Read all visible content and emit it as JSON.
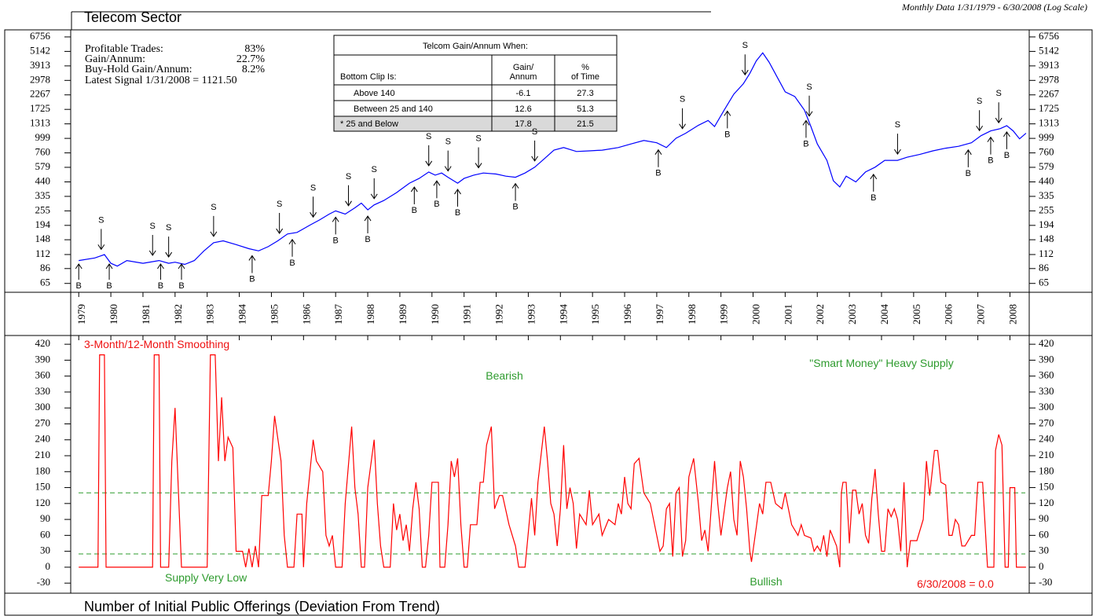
{
  "stats": [
    {
      "label": "Profitable Trades:",
      "value": "83%"
    },
    {
      "label": "Gain/Annum:",
      "value": "22.7%"
    },
    {
      "label": "Buy-Hold Gain/Annum:",
      "value": "8.2%"
    },
    {
      "label": "Latest Signal 1/31/2008 = 1121.50",
      "value": null
    }
  ],
  "table": {
    "title": "Telcom Gain/Annum When:",
    "headers": [
      [
        "Bottom Clip Is:"
      ],
      [
        "Gain/",
        "Annum"
      ],
      [
        "%",
        "of Time"
      ]
    ],
    "rows": [
      [
        "Above 140",
        -6.1,
        27.3
      ],
      [
        "Between 25 and 140",
        12.6,
        51.3
      ],
      [
        "* 25 and Below",
        17.8,
        21.5
      ]
    ]
  },
  "chart_data": [
    {
      "type": "line",
      "title": "Telecom Sector",
      "subtitle": "Monthly Data 1/31/1979 - 6/30/2008 (Log Scale)",
      "log_scale": true,
      "color": "#0000ff",
      "xlim": [
        1978.75,
        2008.6
      ],
      "xticks": [
        1979,
        1980,
        1981,
        1982,
        1983,
        1984,
        1985,
        1986,
        1987,
        1988,
        1989,
        1990,
        1991,
        1992,
        1993,
        1994,
        1995,
        1996,
        1997,
        1998,
        1999,
        2000,
        2001,
        2002,
        2003,
        2004,
        2005,
        2006,
        2007,
        2008
      ],
      "ylim": [
        55,
        7715
      ],
      "yticks": [
        65,
        86,
        112,
        148,
        194,
        255,
        335,
        440,
        579,
        760,
        999,
        1313,
        1725,
        2267,
        2978,
        3913,
        5142,
        6756
      ],
      "x": [
        1979.0,
        1979.5,
        1979.8,
        1980.0,
        1980.2,
        1980.5,
        1981.0,
        1981.5,
        1981.8,
        1982.0,
        1982.3,
        1982.6,
        1982.9,
        1983.2,
        1983.5,
        1983.9,
        1984.3,
        1984.6,
        1984.9,
        1985.2,
        1985.5,
        1985.8,
        1986.2,
        1986.5,
        1986.8,
        1987.0,
        1987.3,
        1987.6,
        1987.8,
        1988.0,
        1988.2,
        1988.5,
        1988.9,
        1989.3,
        1989.6,
        1989.9,
        1990.1,
        1990.3,
        1990.5,
        1990.8,
        1991.0,
        1991.3,
        1991.6,
        1992.0,
        1992.3,
        1992.6,
        1992.9,
        1993.2,
        1993.5,
        1993.8,
        1994.1,
        1994.5,
        1994.9,
        1995.3,
        1995.8,
        1996.2,
        1996.6,
        1997.0,
        1997.3,
        1997.6,
        1997.9,
        1998.3,
        1998.6,
        1998.8,
        1999.1,
        1999.4,
        1999.7,
        1999.9,
        2000.1,
        2000.3,
        2000.5,
        2000.8,
        2001.0,
        2001.3,
        2001.6,
        2001.8,
        2002.0,
        2002.3,
        2002.5,
        2002.7,
        2002.9,
        2003.2,
        2003.5,
        2003.8,
        2004.1,
        2004.5,
        2004.8,
        2005.2,
        2005.6,
        2006.0,
        2006.4,
        2006.8,
        2007.1,
        2007.4,
        2007.7,
        2007.9,
        2008.1,
        2008.3,
        2008.5
      ],
      "values": [
        100,
        105,
        112,
        95,
        90,
        100,
        95,
        100,
        95,
        97,
        93,
        100,
        120,
        140,
        145,
        135,
        125,
        120,
        130,
        145,
        165,
        170,
        195,
        215,
        240,
        255,
        240,
        270,
        295,
        260,
        285,
        310,
        360,
        430,
        470,
        530,
        500,
        520,
        480,
        430,
        470,
        500,
        520,
        510,
        490,
        480,
        520,
        580,
        680,
        800,
        840,
        780,
        790,
        800,
        840,
        900,
        960,
        920,
        840,
        1000,
        1100,
        1280,
        1400,
        1250,
        1700,
        2300,
        2800,
        3400,
        4300,
        5000,
        4200,
        3000,
        2400,
        2200,
        1700,
        1250,
        900,
        660,
        450,
        400,
        490,
        440,
        530,
        580,
        660,
        660,
        700,
        740,
        790,
        830,
        860,
        920,
        1050,
        1150,
        1200,
        1270,
        1150,
        990,
        1100
      ],
      "signals": [
        {
          "label": "S",
          "x": 1979.7
        },
        {
          "label": "S",
          "x": 1981.3
        },
        {
          "label": "S",
          "x": 1981.8
        },
        {
          "label": "S",
          "x": 1983.2
        },
        {
          "label": "S",
          "x": 1985.25
        },
        {
          "label": "S",
          "x": 1986.3
        },
        {
          "label": "S",
          "x": 1987.4
        },
        {
          "label": "S",
          "x": 1988.2
        },
        {
          "label": "S",
          "x": 1989.9
        },
        {
          "label": "S",
          "x": 1990.5
        },
        {
          "label": "S",
          "x": 1991.45
        },
        {
          "label": "S",
          "x": 1993.2
        },
        {
          "label": "S",
          "x": 1997.8
        },
        {
          "label": "S",
          "x": 1999.75
        },
        {
          "label": "S",
          "x": 2001.75
        },
        {
          "label": "S",
          "x": 2004.5
        },
        {
          "label": "S",
          "x": 2007.05
        },
        {
          "label": "S",
          "x": 2007.65
        },
        {
          "label": "B",
          "x": 1979.0
        },
        {
          "label": "B",
          "x": 1979.95
        },
        {
          "label": "B",
          "x": 1981.55
        },
        {
          "label": "B",
          "x": 1982.2
        },
        {
          "label": "B",
          "x": 1984.4
        },
        {
          "label": "B",
          "x": 1985.65
        },
        {
          "label": "B",
          "x": 1987.0
        },
        {
          "label": "B",
          "x": 1988.0
        },
        {
          "label": "B",
          "x": 1989.45
        },
        {
          "label": "B",
          "x": 1990.15
        },
        {
          "label": "B",
          "x": 1990.8
        },
        {
          "label": "B",
          "x": 1992.6
        },
        {
          "label": "B",
          "x": 1997.05
        },
        {
          "label": "B",
          "x": 1999.2
        },
        {
          "label": "B",
          "x": 2001.65
        },
        {
          "label": "B",
          "x": 2003.75
        },
        {
          "label": "B",
          "x": 2006.7
        },
        {
          "label": "B",
          "x": 2007.4
        },
        {
          "label": "B",
          "x": 2007.9
        }
      ]
    },
    {
      "type": "line",
      "title": "Number of Initial Public Offerings (Deviation From Trend)",
      "color": "#ff0000",
      "xlim": [
        1978.75,
        2008.6
      ],
      "ylim": [
        -49,
        435
      ],
      "yticks": [
        -30,
        0,
        30,
        60,
        90,
        120,
        150,
        180,
        210,
        240,
        270,
        300,
        330,
        360,
        390,
        420
      ],
      "hlines": [
        140,
        25
      ],
      "hline_color": "#2e9b2e",
      "annotations": [
        "3-Month/12-Month Smoothing",
        "Bearish",
        "\"Smart Money\" Heavy Supply",
        "Supply Very Low",
        "Bullish",
        "6/30/2008 = 0.0"
      ],
      "x": [
        1979.0,
        1979.6,
        1979.65,
        1979.8,
        1979.85,
        1981.0,
        1981.3,
        1981.35,
        1981.5,
        1981.55,
        1981.8,
        1981.9,
        1982.0,
        1982.1,
        1982.2,
        1983.0,
        1983.1,
        1983.25,
        1983.35,
        1983.45,
        1983.55,
        1983.65,
        1983.8,
        1983.9,
        1984.1,
        1984.2,
        1984.3,
        1984.4,
        1984.5,
        1984.6,
        1984.7,
        1984.9,
        1985.0,
        1985.1,
        1985.3,
        1985.4,
        1985.5,
        1985.7,
        1985.8,
        1985.95,
        1986.0,
        1986.1,
        1986.3,
        1986.4,
        1986.6,
        1986.7,
        1986.8,
        1986.9,
        1987.0,
        1987.2,
        1987.3,
        1987.5,
        1987.6,
        1987.7,
        1987.8,
        1987.9,
        1988.0,
        1988.2,
        1988.3,
        1988.4,
        1988.5,
        1988.7,
        1988.8,
        1988.9,
        1989.0,
        1989.1,
        1989.2,
        1989.3,
        1989.4,
        1989.5,
        1989.6,
        1989.7,
        1989.8,
        1989.9,
        1990.0,
        1990.2,
        1990.25,
        1990.4,
        1990.5,
        1990.6,
        1990.7,
        1990.8,
        1990.9,
        1991.0,
        1991.1,
        1991.2,
        1991.4,
        1991.5,
        1991.6,
        1991.7,
        1991.85,
        1991.95,
        1992.1,
        1992.2,
        1992.4,
        1992.6,
        1992.7,
        1992.9,
        1993.1,
        1993.2,
        1993.3,
        1993.5,
        1993.6,
        1993.7,
        1993.8,
        1993.9,
        1994.0,
        1994.1,
        1994.2,
        1994.3,
        1994.4,
        1994.5,
        1994.6,
        1994.8,
        1994.9,
        1995.0,
        1995.2,
        1995.3,
        1995.5,
        1995.7,
        1995.8,
        1995.9,
        1996.0,
        1996.1,
        1996.2,
        1996.3,
        1996.45,
        1996.6,
        1996.8,
        1997.0,
        1997.1,
        1997.2,
        1997.3,
        1997.4,
        1997.5,
        1997.6,
        1997.7,
        1997.8,
        1997.9,
        1998.0,
        1998.15,
        1998.3,
        1998.4,
        1998.5,
        1998.6,
        1998.8,
        1998.9,
        1999.0,
        1999.2,
        1999.3,
        1999.4,
        1999.5,
        1999.6,
        1999.7,
        1999.8,
        1999.9,
        1999.95,
        2000.1,
        2000.2,
        2000.3,
        2000.4,
        2000.55,
        2000.7,
        2000.9,
        2001.0,
        2001.2,
        2001.4,
        2001.5,
        2001.6,
        2001.8,
        2001.9,
        2002.0,
        2002.1,
        2002.2,
        2002.3,
        2002.4,
        2002.6,
        2002.7,
        2002.75,
        2002.8,
        2002.9,
        2003.0,
        2003.1,
        2003.2,
        2003.3,
        2003.4,
        2003.5,
        2003.6,
        2003.7,
        2003.8,
        2003.9,
        2004.0,
        2004.1,
        2004.2,
        2004.3,
        2004.4,
        2004.5,
        2004.6,
        2004.7,
        2004.8,
        2004.9,
        2005.1,
        2005.3,
        2005.4,
        2005.5,
        2005.65,
        2005.75,
        2005.85,
        2006.0,
        2006.1,
        2006.2,
        2006.3,
        2006.4,
        2006.5,
        2006.6,
        2006.8,
        2006.9,
        2007.0,
        2007.15,
        2007.3,
        2007.5,
        2007.55,
        2007.65,
        2007.75,
        2007.85,
        2007.95,
        2008.0,
        2008.15,
        2008.2,
        2008.5
      ],
      "values": [
        0,
        0,
        400,
        400,
        0,
        0,
        0,
        400,
        400,
        0,
        0,
        200,
        300,
        150,
        0,
        0,
        400,
        400,
        200,
        320,
        200,
        245,
        225,
        30,
        30,
        0,
        35,
        0,
        40,
        0,
        135,
        135,
        200,
        285,
        200,
        60,
        0,
        0,
        100,
        100,
        0,
        120,
        240,
        200,
        180,
        60,
        40,
        60,
        0,
        0,
        120,
        265,
        150,
        100,
        0,
        0,
        150,
        240,
        120,
        40,
        0,
        0,
        120,
        70,
        100,
        50,
        80,
        30,
        110,
        160,
        110,
        0,
        0,
        60,
        160,
        160,
        0,
        0,
        80,
        200,
        170,
        205,
        80,
        0,
        0,
        80,
        80,
        160,
        160,
        230,
        265,
        110,
        135,
        135,
        80,
        40,
        0,
        0,
        130,
        60,
        160,
        265,
        200,
        120,
        100,
        40,
        110,
        230,
        110,
        150,
        120,
        35,
        100,
        80,
        145,
        80,
        100,
        60,
        90,
        80,
        120,
        100,
        170,
        120,
        110,
        195,
        205,
        140,
        120,
        60,
        30,
        40,
        110,
        120,
        20,
        140,
        150,
        20,
        50,
        170,
        205,
        120,
        50,
        70,
        30,
        200,
        120,
        60,
        150,
        180,
        90,
        60,
        200,
        170,
        110,
        30,
        10,
        75,
        120,
        100,
        160,
        160,
        120,
        110,
        140,
        80,
        60,
        80,
        60,
        55,
        30,
        40,
        30,
        60,
        20,
        70,
        40,
        0,
        140,
        160,
        160,
        45,
        145,
        145,
        100,
        120,
        60,
        45,
        130,
        185,
        100,
        30,
        30,
        110,
        95,
        110,
        90,
        30,
        160,
        0,
        50,
        50,
        90,
        200,
        135,
        220,
        220,
        160,
        155,
        60,
        60,
        90,
        80,
        40,
        40,
        60,
        60,
        160,
        160,
        0,
        0,
        220,
        250,
        230,
        0,
        0,
        150,
        150,
        0,
        0
      ]
    }
  ]
}
